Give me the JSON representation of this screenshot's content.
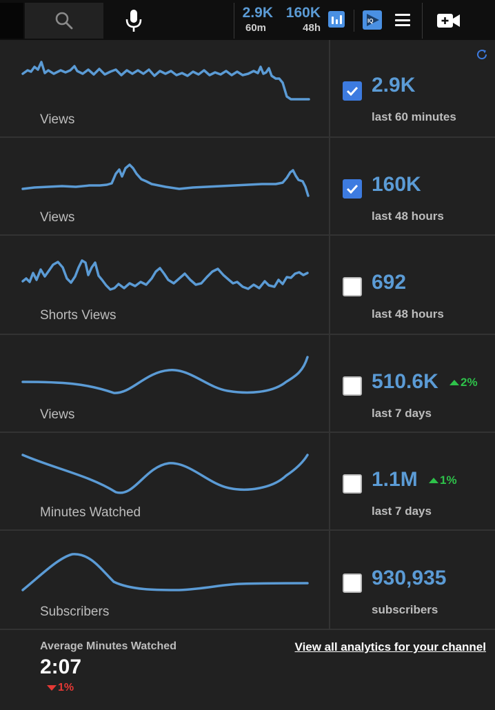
{
  "topbar": {
    "stats": [
      {
        "value": "2.9K",
        "period": "60m"
      },
      {
        "value": "160K",
        "period": "48h"
      }
    ],
    "icons": [
      "search-icon",
      "mic-icon",
      "bar-chart-icon",
      "iq-icon",
      "menu-icon",
      "create-video-icon"
    ]
  },
  "metrics": [
    {
      "label": "Views",
      "value": "2.9K",
      "period": "last 60 minutes",
      "checked": true
    },
    {
      "label": "Views",
      "value": "160K",
      "period": "last 48 hours",
      "checked": true
    },
    {
      "label": "Shorts Views",
      "value": "692",
      "period": "last 48 hours",
      "checked": false
    },
    {
      "label": "Views",
      "value": "510.6K",
      "period": "last 7 days",
      "checked": false,
      "delta": "2%"
    },
    {
      "label": "Minutes Watched",
      "value": "1.1M",
      "period": "last 7 days",
      "checked": false,
      "delta": "1%"
    },
    {
      "label": "Subscribers",
      "value": "930,935",
      "period": "subscribers",
      "checked": false
    }
  ],
  "footer": {
    "avg_label": "Average Minutes Watched",
    "avg_value": "2:07",
    "avg_delta": "1%",
    "link": "View all analytics for your channel"
  },
  "colors": {
    "accent": "#5b9bd5",
    "up": "#2ec24a",
    "down": "#e53935",
    "panel": "#212121"
  }
}
